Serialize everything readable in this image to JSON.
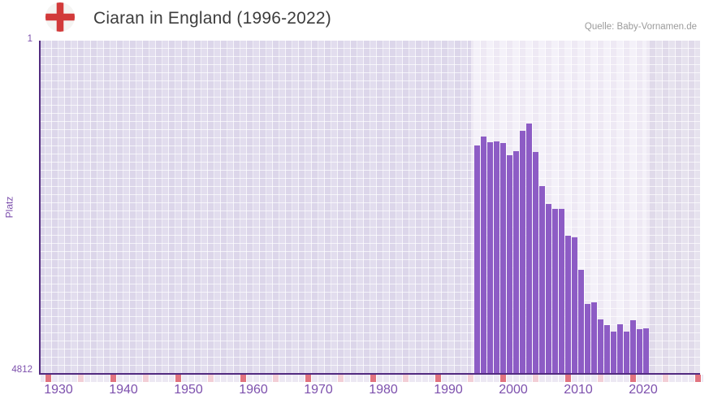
{
  "header": {
    "title": "Ciaran in England (1996-2022)",
    "source": "Quelle: Baby-Vornamen.de"
  },
  "axes": {
    "y_label": "Platz",
    "y_tick_top": "1",
    "y_tick_bottom": "4812",
    "x_tick_labels": [
      "1930",
      "1940",
      "1950",
      "1960",
      "1970",
      "1980",
      "1990",
      "2000",
      "2010",
      "2020"
    ]
  },
  "colors": {
    "bar": "#8d5cc5",
    "axis_line": "#522b80",
    "axis_label": "#7d50ad",
    "title": "#3d3d3d",
    "source": "#9b9b9b",
    "plot_cell": "#e2ddee",
    "band_cell": "#f4f1f9",
    "right_cell": "#e6e2ee",
    "grid_line": "rgba(255,255,255,0.7)",
    "cell_alt_overlay": "rgba(109,78,160,0.05)",
    "tick_cell": "#ece8f3",
    "tick_cell_half_decade": "#f3ced6",
    "tick_cell_decade": "#e1737f",
    "flag_red": "#d23a3a",
    "flag_white": "#f5f4f2"
  },
  "chart_data": {
    "type": "bar",
    "title": "Ciaran in England (1996-2022)",
    "xlabel": "",
    "ylabel": "Platz",
    "y_axis": {
      "min": 1,
      "max": 4812,
      "inverted": true
    },
    "x_axis": {
      "range_start": 1929,
      "range_end": 2031,
      "tick_interval": 10
    },
    "highlight_band_years": [
      1996,
      2022
    ],
    "legend": "none",
    "years": [
      1996,
      1997,
      1998,
      1999,
      2000,
      2001,
      2002,
      2003,
      2004,
      2005,
      2006,
      2007,
      2008,
      2009,
      2010,
      2011,
      2012,
      2013,
      2014,
      2015,
      2016,
      2017,
      2018,
      2019,
      2020,
      2021,
      2022
    ],
    "ranks": [
      1515,
      1385,
      1468,
      1455,
      1480,
      1655,
      1595,
      1305,
      1198,
      1610,
      2100,
      2360,
      2430,
      2430,
      2815,
      2840,
      3310,
      3800,
      3780,
      4025,
      4110,
      4200,
      4095,
      4200,
      4035,
      4165,
      4155
    ]
  }
}
